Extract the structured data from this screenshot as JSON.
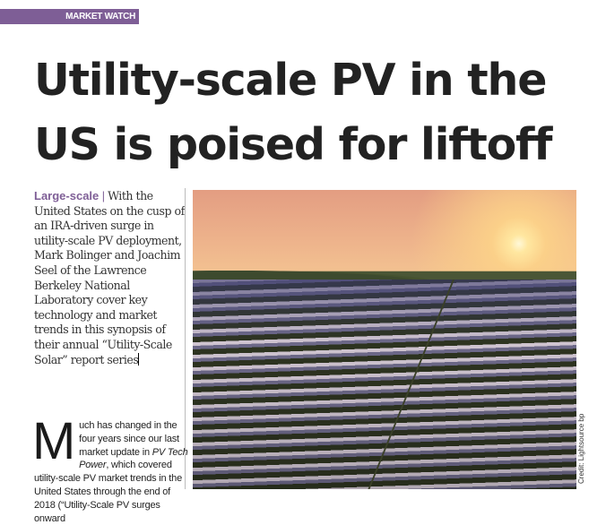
{
  "section": "MARKET WATCH",
  "headline": "Utility-scale PV in the US is poised for liftoff",
  "standfirst": {
    "lead": "Large-scale",
    "separator": "|",
    "text": "With the United States on the cusp of an IRA-driven surge in utility-scale PV deployment, Mark Bolinger and Joachim Seel of the Lawrence Berkeley National Laboratory cover key technology and market trends in this synopsis of their annual “Utility-Scale Solar” report series"
  },
  "body": {
    "dropcap": "M",
    "text_before": "uch has changed in the four years since our last market update in ",
    "publication": "PV Tech Power",
    "text_after": ", which covered utility-scale PV market trends in the United States through the end of 2018 (“Utility-Scale PV surges onward"
  },
  "photo": {
    "credit": "Credit: Lightsource bp",
    "colors": {
      "sky": "#eeb48c",
      "panels": "#6c6888",
      "accent": "#7e5e96"
    }
  }
}
